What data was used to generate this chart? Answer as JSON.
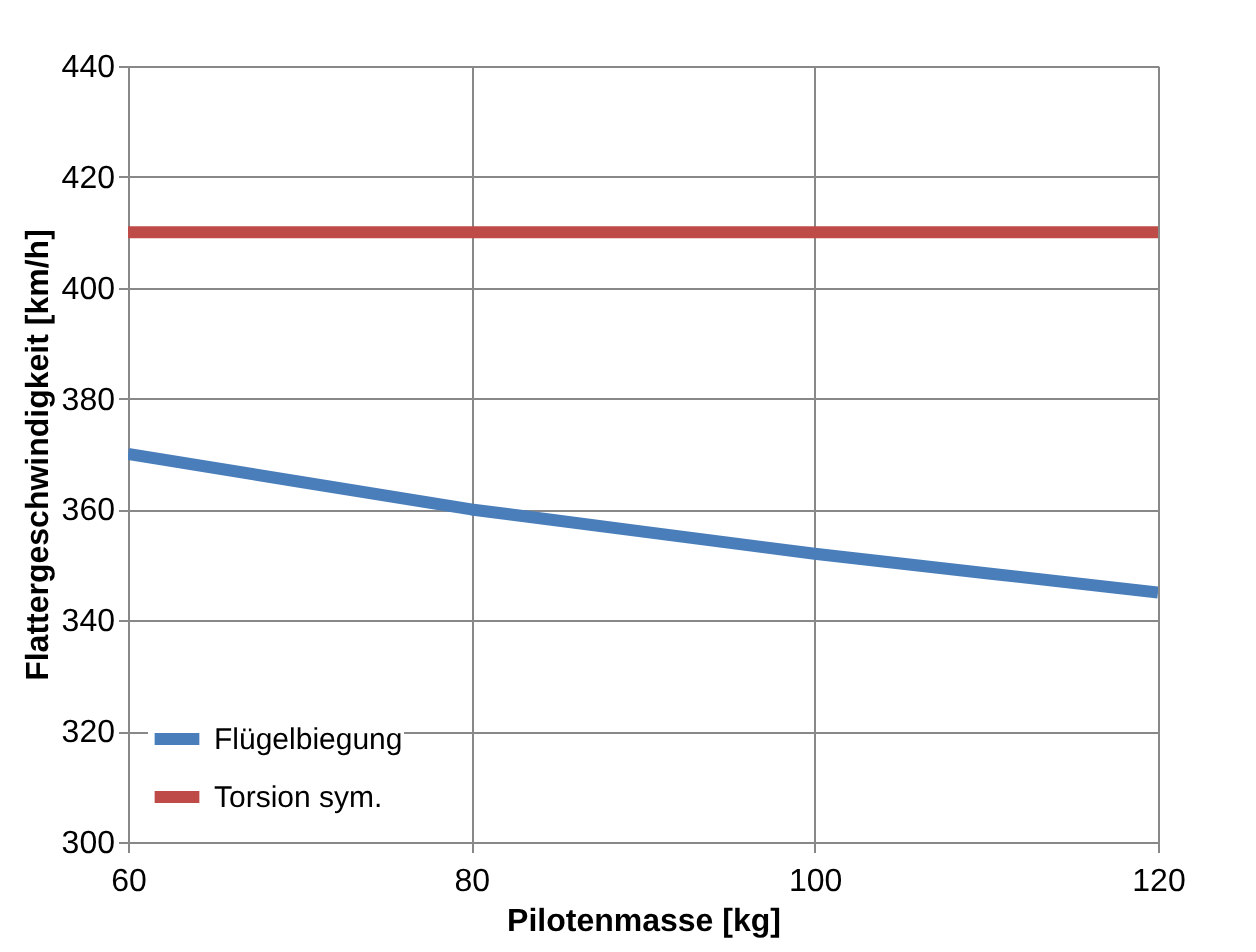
{
  "chart_data": {
    "type": "line",
    "xlabel": "Pilotenmasse [kg]",
    "ylabel": "Flattergeschwindigkeit [km/h]",
    "xlim": [
      60,
      120
    ],
    "xticks": [
      60,
      80,
      100,
      120
    ],
    "ylim": [
      300,
      440
    ],
    "yticks": [
      300,
      320,
      340,
      360,
      380,
      400,
      420,
      440
    ],
    "grid": true,
    "legend": "bottom left",
    "marker": "none",
    "line_style": "solid",
    "series": [
      {
        "name": "Flügelbiegung",
        "color": "#4a7ebb",
        "x": [
          60,
          70,
          80,
          90,
          100,
          110,
          120
        ],
        "values": [
          370,
          365,
          360,
          356,
          352,
          348.5,
          345
        ]
      },
      {
        "name": "Torsion sym.",
        "color": "#be4b48",
        "x": [
          60,
          120
        ],
        "values": [
          410,
          410
        ]
      }
    ]
  }
}
